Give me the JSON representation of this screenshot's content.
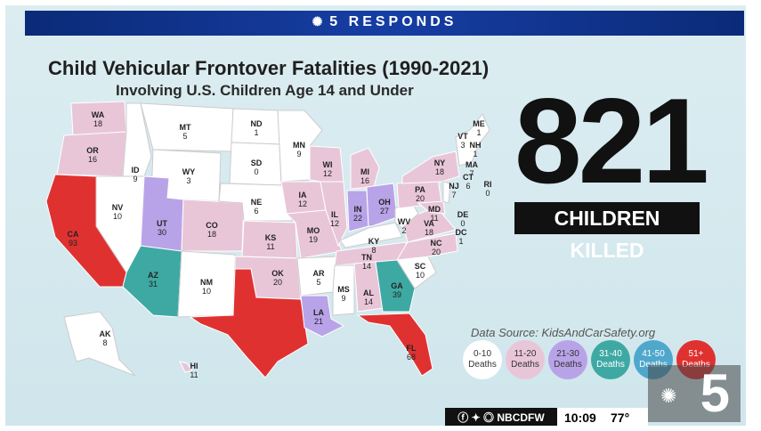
{
  "header": {
    "brand": "5 RESPONDS",
    "peacock_icon": "nbc-peacock-icon"
  },
  "title": "Child Vehicular Frontover Fatalities (1990-2021)",
  "subtitle": "Involving U.S. Children Age 14 and Under",
  "total": {
    "number": "821",
    "caption": "CHILDREN KILLED"
  },
  "source": "Data Source: KidsAndCarSafety.org",
  "legend": [
    {
      "label": "0-10 Deaths",
      "color": "#ffffff"
    },
    {
      "label": "11-20 Deaths",
      "color": "#e8c6d8"
    },
    {
      "label": "21-30 Deaths",
      "color": "#b9a3e8"
    },
    {
      "label": "31-40 Deaths",
      "color": "#3ea9a3"
    },
    {
      "label": "41-50 Deaths",
      "color": "#4fa7cc"
    },
    {
      "label": "51+ Deaths",
      "color": "#e03131"
    }
  ],
  "states": [
    {
      "abbr": "WA",
      "value": "18"
    },
    {
      "abbr": "OR",
      "value": "16"
    },
    {
      "abbr": "CA",
      "value": "93"
    },
    {
      "abbr": "NV",
      "value": "10"
    },
    {
      "abbr": "ID",
      "value": "9"
    },
    {
      "abbr": "MT",
      "value": "5"
    },
    {
      "abbr": "WY",
      "value": "3"
    },
    {
      "abbr": "UT",
      "value": "30"
    },
    {
      "abbr": "AZ",
      "value": "31"
    },
    {
      "abbr": "CO",
      "value": "18"
    },
    {
      "abbr": "NM",
      "value": "10"
    },
    {
      "abbr": "ND",
      "value": "1"
    },
    {
      "abbr": "SD",
      "value": "0"
    },
    {
      "abbr": "NE",
      "value": "6"
    },
    {
      "abbr": "KS",
      "value": "11"
    },
    {
      "abbr": "OK",
      "value": "20"
    },
    {
      "abbr": "TX",
      "value": ""
    },
    {
      "abbr": "MN",
      "value": "9"
    },
    {
      "abbr": "IA",
      "value": "12"
    },
    {
      "abbr": "MO",
      "value": "19"
    },
    {
      "abbr": "AR",
      "value": "5"
    },
    {
      "abbr": "LA",
      "value": "21"
    },
    {
      "abbr": "WI",
      "value": "12"
    },
    {
      "abbr": "IL",
      "value": "12"
    },
    {
      "abbr": "MI",
      "value": "16"
    },
    {
      "abbr": "IN",
      "value": "22"
    },
    {
      "abbr": "OH",
      "value": "27"
    },
    {
      "abbr": "KY",
      "value": "8"
    },
    {
      "abbr": "TN",
      "value": "14"
    },
    {
      "abbr": "MS",
      "value": "9"
    },
    {
      "abbr": "AL",
      "value": "14"
    },
    {
      "abbr": "GA",
      "value": "39"
    },
    {
      "abbr": "FL",
      "value": "68"
    },
    {
      "abbr": "SC",
      "value": "10"
    },
    {
      "abbr": "NC",
      "value": "20"
    },
    {
      "abbr": "VA",
      "value": "18"
    },
    {
      "abbr": "WV",
      "value": "2"
    },
    {
      "abbr": "PA",
      "value": "20"
    },
    {
      "abbr": "NY",
      "value": "18"
    },
    {
      "abbr": "MD",
      "value": "11"
    },
    {
      "abbr": "NJ",
      "value": "7"
    },
    {
      "abbr": "DE",
      "value": "0"
    },
    {
      "abbr": "DC",
      "value": "1"
    },
    {
      "abbr": "CT",
      "value": "6"
    },
    {
      "abbr": "RI",
      "value": "0"
    },
    {
      "abbr": "MA",
      "value": "7"
    },
    {
      "abbr": "VT",
      "value": "3"
    },
    {
      "abbr": "NH",
      "value": "1"
    },
    {
      "abbr": "ME",
      "value": "1"
    },
    {
      "abbr": "AK",
      "value": "8"
    },
    {
      "abbr": "HI",
      "value": "11"
    }
  ],
  "ticker": {
    "social": "NBCDFW",
    "time": "10:09",
    "temp": "77°"
  },
  "logo": {
    "number": "5"
  }
}
